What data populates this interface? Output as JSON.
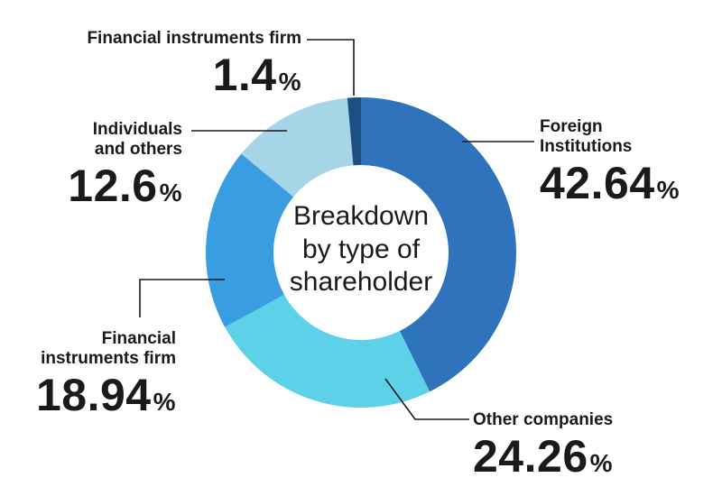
{
  "chart_data": {
    "type": "pie",
    "donut": true,
    "title": "Breakdown\nby type of\nshareholder",
    "title_lines": [
      "Breakdown",
      "by type of",
      "shareholder"
    ],
    "unit": "%",
    "slices": [
      {
        "name": "Foreign Institutions",
        "value": 42.64,
        "color": "#2f73bc"
      },
      {
        "name": "Other companies",
        "value": 24.26,
        "color": "#5cd1e8"
      },
      {
        "name": "Financial instruments firm",
        "value": 18.94,
        "color": "#3a9de2"
      },
      {
        "name": "Individuals and others",
        "value": 12.6,
        "color": "#a6d5e8"
      },
      {
        "name": "Financial instruments firm",
        "value": 1.4,
        "color": "#1d4f82"
      }
    ],
    "labels": [
      {
        "line1": "Foreign",
        "line2": "Institutions",
        "value": "42.64",
        "pct": "%"
      },
      {
        "line1": "Other companies",
        "line2": "",
        "value": "24.26",
        "pct": "%"
      },
      {
        "line1": "Financial",
        "line2": "instruments firm",
        "value": "18.94",
        "pct": "%"
      },
      {
        "line1": "Individuals",
        "line2": "and others",
        "value": "12.6",
        "pct": "%"
      },
      {
        "line1": "Financial instruments firm",
        "line2": "",
        "value": "1.4",
        "pct": "%"
      }
    ]
  }
}
